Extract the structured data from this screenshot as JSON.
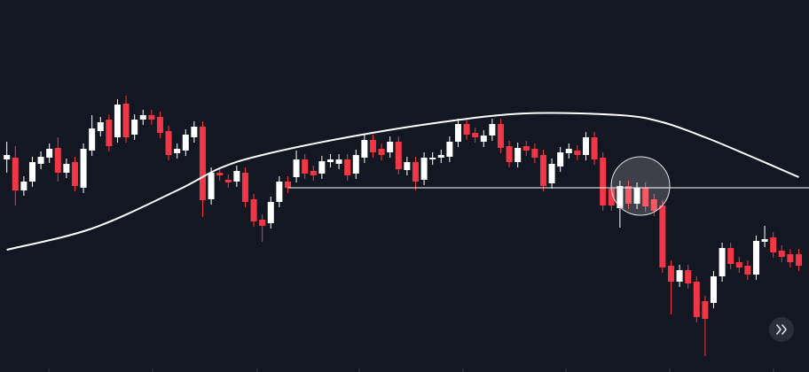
{
  "chart_data": {
    "type": "candlestick",
    "up_color": "#ffffff",
    "down_color": "#f23645",
    "line_color": "#ffffff",
    "xlim": [
      -0.8,
      94.2
    ],
    "ylim": [
      0,
      420
    ],
    "open": [
      240,
      242,
      205,
      215,
      235,
      242,
      253,
      225,
      237,
      208,
      250,
      272,
      285,
      265,
      303,
      268,
      285,
      290,
      288,
      272,
      247,
      250,
      265,
      277,
      195,
      225,
      217,
      215,
      225,
      195,
      172,
      168,
      192,
      215,
      220,
      240,
      227,
      224,
      237,
      235,
      240,
      224,
      242,
      262,
      252,
      248,
      260,
      228,
      237,
      217,
      240,
      242,
      243,
      260,
      280,
      270,
      260,
      267,
      280,
      255,
      237,
      255,
      252,
      245,
      213,
      232,
      247,
      250,
      245,
      265,
      242,
      207,
      185,
      210,
      190,
      208,
      195,
      188,
      120,
      102,
      115,
      102,
      80,
      78,
      108,
      140,
      124,
      120,
      110,
      147,
      152,
      137,
      133,
      133
    ],
    "high": [
      260,
      255,
      221,
      243,
      249,
      258,
      265,
      241,
      243,
      258,
      290,
      288,
      291,
      308,
      312,
      291,
      296,
      296,
      294,
      278,
      258,
      274,
      283,
      283,
      231,
      231,
      223,
      233,
      231,
      201,
      178,
      198,
      221,
      221,
      250,
      246,
      233,
      244,
      246,
      246,
      246,
      251,
      268,
      268,
      258,
      266,
      266,
      243,
      243,
      248,
      248,
      251,
      266,
      286,
      286,
      276,
      273,
      286,
      286,
      261,
      259,
      261,
      258,
      251,
      241,
      254,
      258,
      256,
      271,
      271,
      248,
      213,
      216,
      216,
      214,
      214,
      201,
      194,
      126,
      121,
      121,
      108,
      86,
      114,
      146,
      146,
      130,
      126,
      154,
      165,
      158,
      143,
      139,
      139
    ],
    "low": [
      225,
      188,
      199,
      209,
      229,
      236,
      215,
      219,
      204,
      202,
      244,
      266,
      249,
      259,
      259,
      262,
      279,
      279,
      264,
      239,
      241,
      244,
      259,
      175,
      189,
      216,
      208,
      209,
      186,
      164,
      147,
      162,
      186,
      202,
      214,
      218,
      216,
      218,
      231,
      229,
      216,
      218,
      236,
      242,
      239,
      242,
      223,
      222,
      205,
      211,
      234,
      236,
      237,
      254,
      262,
      259,
      254,
      261,
      247,
      231,
      231,
      244,
      236,
      204,
      207,
      226,
      241,
      239,
      239,
      234,
      182,
      182,
      163,
      184,
      184,
      181,
      176,
      112,
      65,
      96,
      94,
      56,
      18,
      72,
      102,
      116,
      112,
      104,
      104,
      141,
      129,
      124,
      118,
      114
    ],
    "close": [
      245,
      205,
      215,
      237,
      243,
      252,
      225,
      235,
      210,
      252,
      275,
      282,
      255,
      302,
      265,
      285,
      290,
      285,
      270,
      245,
      252,
      268,
      277,
      194,
      225,
      222,
      214,
      227,
      192,
      170,
      165,
      192,
      215,
      208,
      240,
      224,
      222,
      238,
      240,
      240,
      222,
      245,
      262,
      248,
      245,
      260,
      229,
      237,
      215,
      242,
      242,
      245,
      260,
      280,
      268,
      265,
      267,
      280,
      253,
      237,
      253,
      250,
      242,
      210,
      235,
      248,
      252,
      245,
      265,
      240,
      188,
      188,
      210,
      190,
      208,
      187,
      182,
      118,
      102,
      115,
      100,
      62,
      60,
      108,
      140,
      122,
      118,
      110,
      148,
      150,
      135,
      130,
      124,
      120
    ],
    "ma": {
      "x": [
        0,
        10,
        20,
        25,
        30,
        40,
        51,
        61,
        72,
        77,
        82,
        87,
        93
      ],
      "values": [
        138,
        162,
        205,
        230,
        245,
        265,
        282,
        292,
        290,
        282,
        265,
        245,
        220
      ]
    },
    "hline": {
      "value": 208,
      "from": 33
    }
  }
}
